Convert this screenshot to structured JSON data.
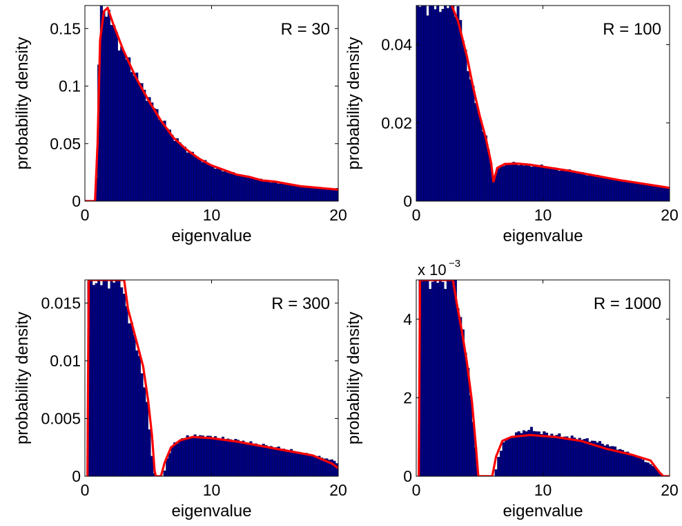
{
  "chart_data": [
    {
      "type": "bar",
      "overlay": "line",
      "panel_label": "R = 30",
      "xlabel": "eigenvalue",
      "ylabel": "probability density",
      "xlim": [
        0,
        20
      ],
      "ylim": [
        0,
        0.17
      ],
      "xticks": [
        "0",
        "10",
        "20"
      ],
      "yticks": [
        {
          "value": 0,
          "label": "0"
        },
        {
          "value": 0.05,
          "label": "0.05"
        },
        {
          "value": 0.1,
          "label": "0.1"
        },
        {
          "value": 0.15,
          "label": "0.15"
        }
      ],
      "bar_color": "#000080",
      "line_color": "#ff0000",
      "histogram_points": [
        [
          0.8,
          0
        ],
        [
          1.0,
          0.04
        ],
        [
          1.1,
          0.12
        ],
        [
          1.3,
          0.163
        ],
        [
          1.5,
          0.168
        ],
        [
          1.8,
          0.165
        ],
        [
          2.2,
          0.152
        ],
        [
          3,
          0.13
        ],
        [
          4,
          0.11
        ],
        [
          5,
          0.09
        ],
        [
          6,
          0.072
        ],
        [
          7,
          0.056
        ],
        [
          8,
          0.045
        ],
        [
          9,
          0.037
        ],
        [
          10,
          0.031
        ],
        [
          11,
          0.026
        ],
        [
          12,
          0.023
        ],
        [
          13,
          0.021
        ],
        [
          14,
          0.018
        ],
        [
          15,
          0.016
        ],
        [
          16,
          0.015
        ],
        [
          17,
          0.013
        ],
        [
          18,
          0.012
        ],
        [
          19,
          0.011
        ],
        [
          20,
          0.011
        ]
      ],
      "density_curve": [
        [
          0,
          0
        ],
        [
          0.8,
          0
        ],
        [
          1.0,
          0.05
        ],
        [
          1.2,
          0.14
        ],
        [
          1.5,
          0.165
        ],
        [
          1.8,
          0.168
        ],
        [
          2.2,
          0.155
        ],
        [
          3,
          0.132
        ],
        [
          4,
          0.108
        ],
        [
          5,
          0.088
        ],
        [
          6,
          0.07
        ],
        [
          7,
          0.055
        ],
        [
          8,
          0.045
        ],
        [
          9,
          0.037
        ],
        [
          10,
          0.031
        ],
        [
          11,
          0.027
        ],
        [
          12,
          0.023
        ],
        [
          13,
          0.021
        ],
        [
          14,
          0.018
        ],
        [
          15,
          0.017
        ],
        [
          16,
          0.015
        ],
        [
          17,
          0.013
        ],
        [
          18,
          0.012
        ],
        [
          19,
          0.011
        ],
        [
          20,
          0.01
        ]
      ]
    },
    {
      "type": "bar",
      "overlay": "line",
      "panel_label": "R = 100",
      "xlabel": "eigenvalue",
      "ylabel": "probability density",
      "xlim": [
        0,
        20
      ],
      "ylim": [
        0,
        0.05
      ],
      "xticks": [
        "0",
        "10",
        "20"
      ],
      "yticks": [
        {
          "value": 0,
          "label": "0"
        },
        {
          "value": 0.02,
          "label": "0.02"
        },
        {
          "value": 0.04,
          "label": "0.04"
        }
      ],
      "bar_color": "#000080",
      "line_color": "#ff0000",
      "histogram_points": [
        [
          0,
          0.05
        ],
        [
          3.0,
          0.05
        ],
        [
          3.3,
          0.048
        ],
        [
          3.6,
          0.044
        ],
        [
          4,
          0.036
        ],
        [
          4.5,
          0.028
        ],
        [
          5,
          0.022
        ],
        [
          5.5,
          0.016
        ],
        [
          5.9,
          0.01
        ],
        [
          6.1,
          0.006
        ],
        [
          6.4,
          0.008
        ],
        [
          7,
          0.0095
        ],
        [
          8,
          0.0095
        ],
        [
          9,
          0.0092
        ],
        [
          10,
          0.0088
        ],
        [
          12,
          0.0078
        ],
        [
          14,
          0.0066
        ],
        [
          16,
          0.0054
        ],
        [
          18,
          0.0044
        ],
        [
          20,
          0.0033
        ]
      ],
      "density_curve": [
        [
          2.8,
          0.05
        ],
        [
          3.3,
          0.046
        ],
        [
          4,
          0.037
        ],
        [
          4.5,
          0.029
        ],
        [
          5,
          0.022
        ],
        [
          5.5,
          0.016
        ],
        [
          5.9,
          0.01
        ],
        [
          6.1,
          0.005
        ],
        [
          6.4,
          0.0085
        ],
        [
          7,
          0.0095
        ],
        [
          8,
          0.0096
        ],
        [
          9,
          0.0093
        ],
        [
          10,
          0.0088
        ],
        [
          12,
          0.0078
        ],
        [
          14,
          0.0066
        ],
        [
          16,
          0.0054
        ],
        [
          18,
          0.0044
        ],
        [
          20,
          0.0034
        ]
      ]
    },
    {
      "type": "bar",
      "overlay": "line",
      "panel_label": "R = 300",
      "xlabel": "eigenvalue",
      "ylabel": "probability density",
      "xlim": [
        0,
        20
      ],
      "ylim": [
        0,
        0.017
      ],
      "xticks": [
        "0",
        "10",
        "20"
      ],
      "yticks": [
        {
          "value": 0,
          "label": "0"
        },
        {
          "value": 0.005,
          "label": "0.005"
        },
        {
          "value": 0.01,
          "label": "0.01"
        },
        {
          "value": 0.015,
          "label": "0.015"
        }
      ],
      "bar_color": "#000080",
      "line_color": "#ff0000",
      "histogram_points": [
        [
          0.3,
          0.017
        ],
        [
          3.0,
          0.017
        ],
        [
          3.2,
          0.015
        ],
        [
          3.6,
          0.013
        ],
        [
          4,
          0.012
        ],
        [
          4.5,
          0.009
        ],
        [
          5,
          0.0055
        ],
        [
          5.2,
          0.003
        ],
        [
          5.4,
          0.0005
        ],
        [
          5.6,
          0
        ],
        [
          6.2,
          0
        ],
        [
          6.5,
          0.0015
        ],
        [
          7,
          0.0028
        ],
        [
          8,
          0.0034
        ],
        [
          9,
          0.0035
        ],
        [
          10,
          0.0034
        ],
        [
          12,
          0.0031
        ],
        [
          14,
          0.0027
        ],
        [
          16,
          0.0023
        ],
        [
          18,
          0.0018
        ],
        [
          19.5,
          0.0014
        ],
        [
          20,
          0.0011
        ]
      ],
      "density_curve": [
        [
          0.2,
          0
        ],
        [
          0.3,
          0.017
        ],
        [
          3.1,
          0.017
        ],
        [
          3.4,
          0.0145
        ],
        [
          4,
          0.012
        ],
        [
          4.6,
          0.0095
        ],
        [
          5.0,
          0.0065
        ],
        [
          5.3,
          0.0035
        ],
        [
          5.5,
          0.0005
        ],
        [
          5.6,
          0
        ],
        [
          6.0,
          0
        ],
        [
          6.3,
          0.0012
        ],
        [
          6.8,
          0.0025
        ],
        [
          7.5,
          0.0031
        ],
        [
          8.5,
          0.0034
        ],
        [
          10,
          0.0033
        ],
        [
          12,
          0.003
        ],
        [
          14,
          0.0026
        ],
        [
          16,
          0.0022
        ],
        [
          18,
          0.0018
        ],
        [
          19.5,
          0.0011
        ],
        [
          20,
          0.0007
        ]
      ]
    },
    {
      "type": "bar",
      "overlay": "line",
      "panel_label": "R = 1000",
      "xlabel": "eigenvalue",
      "ylabel": "probability density",
      "xlim": [
        0,
        20
      ],
      "ylim": [
        0,
        0.005
      ],
      "y_multiplier_label": "x 10",
      "y_multiplier_exponent": "−3",
      "xticks": [
        "0",
        "10",
        "20"
      ],
      "yticks": [
        {
          "value": 0,
          "label": "0"
        },
        {
          "value": 0.002,
          "label": "2"
        },
        {
          "value": 0.004,
          "label": "4"
        }
      ],
      "bar_color": "#000080",
      "line_color": "#ff0000",
      "histogram_points": [
        [
          0.3,
          0.005
        ],
        [
          3.1,
          0.005
        ],
        [
          3.3,
          0.0045
        ],
        [
          3.6,
          0.0038
        ],
        [
          4,
          0.003
        ],
        [
          4.4,
          0.0018
        ],
        [
          4.7,
          0.0007
        ],
        [
          4.9,
          0
        ],
        [
          6.2,
          0
        ],
        [
          6.5,
          0.0005
        ],
        [
          7,
          0.0009
        ],
        [
          8,
          0.0011
        ],
        [
          9,
          0.0012
        ],
        [
          10,
          0.0011
        ],
        [
          12,
          0.001
        ],
        [
          14,
          0.0009
        ],
        [
          16,
          0.0007
        ],
        [
          18,
          0.0004
        ],
        [
          19,
          0.0002
        ],
        [
          19.5,
          0
        ]
      ],
      "density_curve": [
        [
          0.2,
          0
        ],
        [
          0.3,
          0.005
        ],
        [
          2.9,
          0.005
        ],
        [
          3.2,
          0.0044
        ],
        [
          3.6,
          0.0037
        ],
        [
          4,
          0.0029
        ],
        [
          4.4,
          0.0019
        ],
        [
          4.7,
          0.0008
        ],
        [
          4.9,
          0
        ],
        [
          6.0,
          0
        ],
        [
          6.3,
          0.0005
        ],
        [
          6.8,
          0.0009
        ],
        [
          7.5,
          0.001
        ],
        [
          9,
          0.00105
        ],
        [
          11,
          0.001
        ],
        [
          13,
          0.0009
        ],
        [
          15,
          0.0007
        ],
        [
          17,
          0.00055
        ],
        [
          18.5,
          0.0004
        ],
        [
          19.2,
          0.0001
        ],
        [
          19.5,
          0
        ],
        [
          20,
          0
        ]
      ]
    }
  ]
}
